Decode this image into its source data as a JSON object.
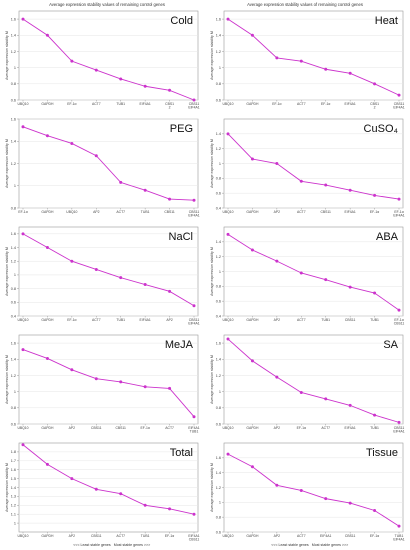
{
  "figure": {
    "header_text": "Average expression stability values of remaining control genes",
    "footer_least": "<<< Least stable genes",
    "footer_most": "Most stable genes >>>",
    "ylabel": "Average expression stability M",
    "colors": {
      "line": "#cc33cc",
      "grid": "#e6e6e6",
      "axis": "#999999"
    }
  },
  "chart_data": [
    {
      "type": "line",
      "title": "Cold",
      "ylim": [
        0.6,
        1.7
      ],
      "yticks": [
        "0.6",
        "0.8",
        "1",
        "1.2",
        "1.4",
        "1.6"
      ],
      "categories": [
        "UBQ10",
        "GAPDH",
        "EF-1α",
        "ACT7",
        "TUB1",
        "EIF4A1",
        "CBS1/2",
        "CBS11/EIF4A1"
      ],
      "values": [
        1.6,
        1.4,
        1.08,
        0.97,
        0.86,
        0.77,
        0.72,
        0.6
      ]
    },
    {
      "type": "line",
      "title": "Heat",
      "ylim": [
        0.6,
        1.7
      ],
      "yticks": [
        "0.6",
        "0.8",
        "1",
        "1.2",
        "1.4",
        "1.6"
      ],
      "categories": [
        "UBQ10",
        "GAPDH",
        "EF-1α",
        "ACT7",
        "EF-1α",
        "EIF4A1",
        "CBS1/2",
        "CBS11/EIF4A1"
      ],
      "values": [
        1.6,
        1.4,
        1.12,
        1.08,
        0.98,
        0.93,
        0.8,
        0.66
      ]
    },
    {
      "type": "line",
      "title": "PEG",
      "ylim": [
        0.8,
        1.6
      ],
      "yticks": [
        "0.8",
        "1",
        "1.2",
        "1.4",
        "1.6"
      ],
      "categories": [
        "EF-1α",
        "GAPDH",
        "UBQ10",
        "AP2",
        "ACT7",
        "TUB1",
        "CBS11",
        "CBS11/EIF4A1"
      ],
      "values": [
        1.53,
        1.45,
        1.38,
        1.27,
        1.03,
        0.96,
        0.88,
        0.87
      ]
    },
    {
      "type": "line",
      "title": "CuSO₄",
      "ylim": [
        0.4,
        1.6
      ],
      "yticks": [
        "0.4",
        "0.6",
        "0.8",
        "1",
        "1.2",
        "1.4"
      ],
      "categories": [
        "UBQ10",
        "GAPDH",
        "AP2",
        "ACT7",
        "CBS11",
        "EIF4A1",
        "EF-1α",
        "EF-1α/EIF4A1"
      ],
      "values": [
        1.4,
        1.06,
        1.0,
        0.76,
        0.71,
        0.64,
        0.57,
        0.52
      ]
    },
    {
      "type": "line",
      "title": "NaCl",
      "ylim": [
        0.4,
        1.7
      ],
      "yticks": [
        "0.4",
        "0.6",
        "0.8",
        "1",
        "1.2",
        "1.4",
        "1.6"
      ],
      "categories": [
        "UBQ10",
        "GAPDH",
        "EF-1α",
        "ACT7",
        "TUB1",
        "EIF4A1",
        "AP2",
        "CBS11/EIF4A1"
      ],
      "values": [
        1.6,
        1.4,
        1.2,
        1.08,
        0.96,
        0.86,
        0.76,
        0.55
      ]
    },
    {
      "type": "line",
      "title": "ABA",
      "ylim": [
        0.4,
        1.6
      ],
      "yticks": [
        "0.4",
        "0.6",
        "0.8",
        "1",
        "1.2",
        "1.4"
      ],
      "categories": [
        "UBQ10",
        "GAPDH",
        "AP2",
        "ACT7",
        "TUB1",
        "CBS11",
        "TUB1",
        "EF-1α/CBS11"
      ],
      "values": [
        1.5,
        1.29,
        1.14,
        0.98,
        0.89,
        0.79,
        0.71,
        0.48
      ]
    },
    {
      "type": "line",
      "title": "MeJA",
      "ylim": [
        0.6,
        1.7
      ],
      "yticks": [
        "0.6",
        "0.8",
        "1",
        "1.2",
        "1.4",
        "1.6"
      ],
      "categories": [
        "UBQ10",
        "GAPDH",
        "AP2",
        "CBS11",
        "CBS11",
        "EF-1α",
        "ACT7",
        "EIF4A1/TUB1"
      ],
      "values": [
        1.52,
        1.41,
        1.27,
        1.16,
        1.12,
        1.06,
        1.04,
        0.69
      ]
    },
    {
      "type": "line",
      "title": "SA",
      "ylim": [
        0.6,
        1.7
      ],
      "yticks": [
        "0.6",
        "0.8",
        "1",
        "1.2",
        "1.4",
        "1.6"
      ],
      "categories": [
        "UBQ10",
        "GAPDH",
        "AP2",
        "EF-1α",
        "ACT7",
        "EIF4A1",
        "TUB1",
        "CBS11/EIF4A1"
      ],
      "values": [
        1.65,
        1.38,
        1.18,
        0.99,
        0.91,
        0.83,
        0.71,
        0.62
      ]
    },
    {
      "type": "line",
      "title": "Total",
      "ylim": [
        0.9,
        1.9
      ],
      "yticks": [
        "1",
        "1.1",
        "1.2",
        "1.3",
        "1.4",
        "1.5",
        "1.6",
        "1.7",
        "1.8"
      ],
      "categories": [
        "UBQ10",
        "GAPDH",
        "AP2",
        "CBS11",
        "ACT7",
        "TUB1",
        "EF-1α",
        "EIF4A1/CBS11"
      ],
      "values": [
        1.88,
        1.66,
        1.5,
        1.38,
        1.33,
        1.2,
        1.16,
        1.1
      ]
    },
    {
      "type": "line",
      "title": "Tissue",
      "ylim": [
        0.6,
        1.8
      ],
      "yticks": [
        "0.6",
        "0.8",
        "1",
        "1.2",
        "1.4",
        "1.6"
      ],
      "categories": [
        "UBQ10",
        "GAPDH",
        "AP2",
        "ACT7",
        "EIF4A1",
        "CBS11",
        "EF-1α",
        "TUB1/EIF4A1"
      ],
      "values": [
        1.65,
        1.48,
        1.23,
        1.16,
        1.05,
        0.99,
        0.89,
        0.68
      ]
    }
  ]
}
